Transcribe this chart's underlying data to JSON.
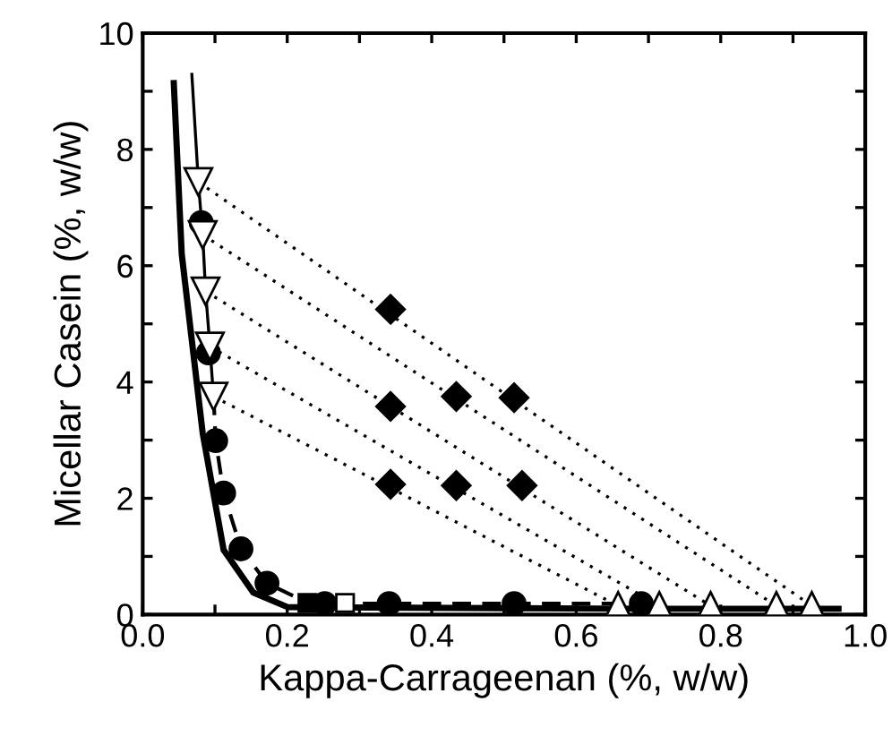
{
  "chart_data": {
    "type": "scatter",
    "xlabel": "Kappa-Carrageenan (%, w/w)",
    "ylabel": "Micellar Casein (%, w/w)",
    "xlim": [
      0,
      1.0
    ],
    "ylim": [
      0,
      10
    ],
    "xticks": [
      {
        "value": 0,
        "label": "0.0"
      },
      {
        "value": 0.1,
        "label": null
      },
      {
        "value": 0.2,
        "label": "0.2"
      },
      {
        "value": 0.3,
        "label": null
      },
      {
        "value": 0.4,
        "label": "0.4"
      },
      {
        "value": 0.5,
        "label": null
      },
      {
        "value": 0.6,
        "label": "0.6"
      },
      {
        "value": 0.7,
        "label": null
      },
      {
        "value": 0.8,
        "label": "0.8"
      },
      {
        "value": 0.9,
        "label": null
      },
      {
        "value": 1.0,
        "label": "1.0"
      }
    ],
    "yticks": [
      0,
      {
        "value": 1,
        "label": null
      },
      2,
      {
        "value": 3,
        "label": null
      },
      4,
      {
        "value": 5,
        "label": null
      },
      6,
      {
        "value": 7,
        "label": null
      },
      8,
      {
        "value": 9,
        "label": null
      },
      10
    ],
    "grid": false,
    "series": [
      {
        "type": "line",
        "line_style": "dotted",
        "color": "#000000",
        "x": [
          0.077,
          0.926
        ],
        "values": [
          7.44,
          0.15
        ]
      },
      {
        "type": "line",
        "line_style": "dotted",
        "color": "#000000",
        "x": [
          0.083,
          0.877
        ],
        "values": [
          6.53,
          0.15
        ]
      },
      {
        "type": "line",
        "line_style": "dotted",
        "color": "#000000",
        "x": [
          0.087,
          0.786
        ],
        "values": [
          5.56,
          0.15
        ]
      },
      {
        "type": "line",
        "line_style": "dotted",
        "color": "#000000",
        "x": [
          0.093,
          0.715
        ],
        "values": [
          4.61,
          0.15
        ]
      },
      {
        "type": "line",
        "line_style": "dotted",
        "color": "#000000",
        "x": [
          0.098,
          0.658
        ],
        "values": [
          3.75,
          0.15
        ]
      },
      {
        "type": "line",
        "line_style": "solid",
        "color": "#000000",
        "x": [
          0.043,
          0.054,
          0.083,
          0.112,
          0.153,
          0.2,
          0.3,
          0.5,
          0.7,
          0.963
        ],
        "values": [
          9.14,
          6.2,
          3.12,
          1.11,
          0.38,
          0.13,
          0.12,
          0.11,
          0.1,
          0.1
        ]
      },
      {
        "type": "line",
        "line_style": "solid",
        "color": "#000000",
        "x": [
          0.068,
          0.077,
          0.083,
          0.087,
          0.093,
          0.098
        ],
        "values": [
          9.29,
          7.44,
          6.53,
          5.56,
          4.61,
          3.75
        ]
      },
      {
        "type": "line",
        "line_style": "dashed",
        "color": "#000000",
        "x": [
          0.098,
          0.101,
          0.112,
          0.136,
          0.172,
          0.22,
          0.3,
          0.5,
          0.69
        ],
        "values": [
          3.75,
          2.99,
          2.09,
          1.13,
          0.54,
          0.25,
          0.19,
          0.19,
          0.19
        ]
      },
      {
        "marker": "circle",
        "color": "#000000",
        "x": [
          0.081,
          0.091,
          0.101,
          0.112,
          0.136,
          0.172,
          0.252,
          0.341,
          0.514,
          0.69
        ],
        "values": [
          6.74,
          4.5,
          2.99,
          2.09,
          1.13,
          0.54,
          0.19,
          0.19,
          0.19,
          0.19
        ]
      },
      {
        "marker": "triangle_down",
        "color": "#ffffff",
        "x": [
          0.077,
          0.083,
          0.087,
          0.093,
          0.098
        ],
        "values": [
          7.44,
          6.53,
          5.56,
          4.61,
          3.75
        ]
      },
      {
        "marker": "square",
        "color": "#000000",
        "x": [
          0.228
        ],
        "values": [
          0.2
        ]
      },
      {
        "marker": "square",
        "color": "#ffffff",
        "x": [
          0.28
        ],
        "values": [
          0.2
        ]
      },
      {
        "marker": "diamond",
        "color": "#000000",
        "x": [
          0.343,
          0.343,
          0.434,
          0.514,
          0.343,
          0.434,
          0.525
        ],
        "values": [
          5.25,
          3.58,
          3.75,
          3.73,
          2.24,
          2.22,
          2.22
        ]
      },
      {
        "marker": "triangle",
        "color": "#ffffff",
        "x": [
          0.658,
          0.715,
          0.786,
          0.877,
          0.926
        ],
        "values": [
          0.15,
          0.15,
          0.15,
          0.15,
          0.15
        ]
      }
    ]
  }
}
